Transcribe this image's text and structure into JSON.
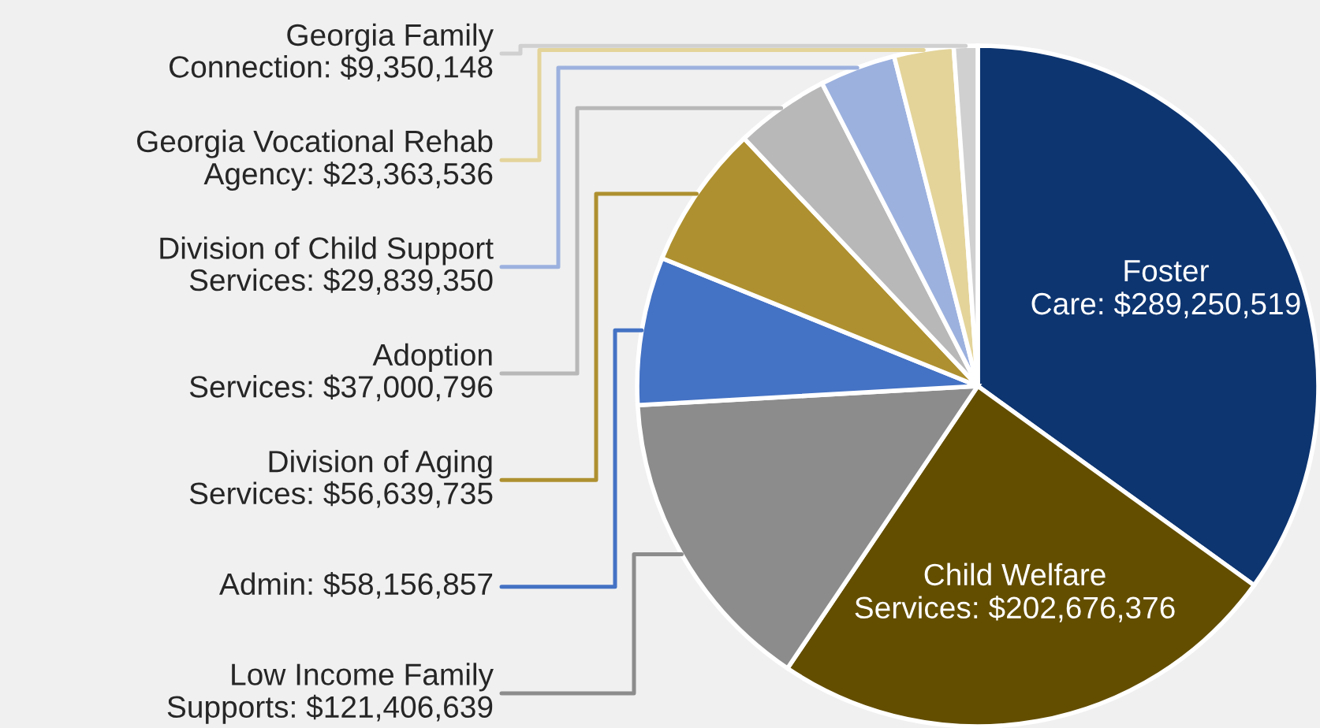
{
  "chart_data": {
    "type": "pie",
    "categories": [
      "Foster Care",
      "Child Welfare Services",
      "Low Income Family Supports",
      "Admin",
      "Division of Aging Services",
      "Adoption Services",
      "Division of Child Support Services",
      "Georgia Vocational Rehab Agency",
      "Georgia Family Connection"
    ],
    "values": [
      289250519,
      202676376,
      121406639,
      58156857,
      56639735,
      37000796,
      29839350,
      23363536,
      9350148
    ],
    "value_labels": [
      "$289,250,519",
      "$202,676,376",
      "$121,406,639",
      "$58,156,857",
      "$56,639,735",
      "$37,000,796",
      "$29,839,350",
      "$23,363,536",
      "$9,350,148"
    ],
    "colors": [
      "#0d3570",
      "#634e00",
      "#8c8c8c",
      "#4472c4",
      "#ae9030",
      "#b8b8b8",
      "#9cb1de",
      "#e4d49a",
      "#d0d0d0"
    ],
    "legend": false
  }
}
